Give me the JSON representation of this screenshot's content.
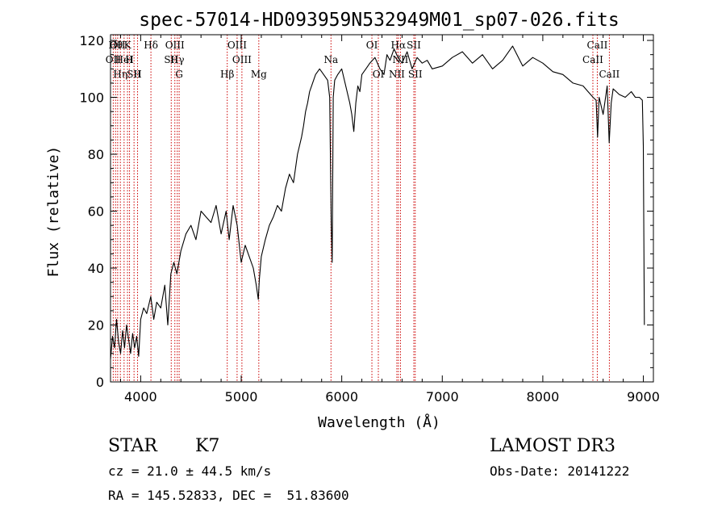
{
  "chart_data": {
    "type": "line",
    "title": "spec-57014-HD093959N532949M01_sp07-026.fits",
    "xlabel": "Wavelength (Å)",
    "ylabel": "Flux (relative)",
    "xlim": [
      3700,
      9100
    ],
    "ylim": [
      0,
      122
    ],
    "x_ticks": [
      4000,
      5000,
      6000,
      7000,
      8000,
      9000
    ],
    "x_tick_labels": [
      "4000",
      "5000",
      "6000",
      "7000",
      "8000",
      "9000"
    ],
    "y_ticks": [
      0,
      20,
      40,
      60,
      80,
      100,
      120
    ],
    "y_tick_labels": [
      "0",
      "20",
      "40",
      "60",
      "80",
      "100",
      "120"
    ],
    "grid": false,
    "legend": "none",
    "line_color": "#000000",
    "marker_color": "#cc0000",
    "series": [
      {
        "x": [
          3700,
          3720,
          3740,
          3760,
          3780,
          3800,
          3820,
          3840,
          3860,
          3880,
          3900,
          3920,
          3940,
          3960,
          3980,
          4000,
          4030,
          4060,
          4100,
          4130,
          4160,
          4200,
          4240,
          4270,
          4300,
          4330,
          4360,
          4400,
          4450,
          4500,
          4550,
          4600,
          4650,
          4700,
          4750,
          4800,
          4850,
          4880,
          4920,
          4960,
          5000,
          5040,
          5080,
          5120,
          5150,
          5170,
          5180,
          5200,
          5240,
          5280,
          5320,
          5360,
          5400,
          5440,
          5480,
          5520,
          5560,
          5600,
          5620,
          5640,
          5660,
          5680,
          5700,
          5740,
          5780,
          5820,
          5860,
          5880,
          5895,
          5905,
          5915,
          5930,
          5960,
          6000,
          6040,
          6080,
          6100,
          6120,
          6140,
          6160,
          6180,
          6200,
          6240,
          6280,
          6330,
          6380,
          6420,
          6450,
          6480,
          6520,
          6560,
          6600,
          6650,
          6700,
          6750,
          6800,
          6850,
          6900,
          7000,
          7100,
          7200,
          7300,
          7400,
          7500,
          7600,
          7700,
          7800,
          7900,
          8000,
          8100,
          8200,
          8300,
          8400,
          8450,
          8500,
          8530,
          8545,
          8560,
          8600,
          8640,
          8660,
          8680,
          8700,
          8760,
          8820,
          8880,
          8920,
          8960,
          8990,
          9000,
          9010
        ],
        "y": [
          8,
          16,
          12,
          22,
          14,
          10,
          18,
          12,
          20,
          15,
          10,
          17,
          12,
          16,
          9,
          22,
          26,
          24,
          30,
          22,
          28,
          26,
          34,
          20,
          38,
          42,
          38,
          46,
          52,
          55,
          50,
          60,
          58,
          56,
          62,
          52,
          60,
          50,
          62,
          55,
          42,
          48,
          44,
          40,
          34,
          29,
          36,
          44,
          50,
          55,
          58,
          62,
          60,
          68,
          73,
          70,
          80,
          86,
          90,
          95,
          98,
          102,
          104,
          108,
          110,
          108,
          106,
          100,
          56,
          42,
          100,
          106,
          108,
          110,
          104,
          98,
          94,
          88,
          98,
          104,
          102,
          108,
          110,
          112,
          114,
          110,
          108,
          115,
          113,
          117,
          114,
          112,
          116,
          110,
          114,
          112,
          113,
          110,
          111,
          114,
          116,
          112,
          115,
          110,
          113,
          118,
          111,
          114,
          112,
          109,
          108,
          105,
          104,
          102,
          100,
          99,
          86,
          100,
          94,
          104,
          84,
          98,
          103,
          101,
          100,
          102,
          100,
          100,
          99,
          83,
          20
        ],
        "name": ""
      }
    ],
    "line_markers": [
      {
        "x": 3727,
        "labels": [
          "OII"
        ],
        "row": 1
      },
      {
        "x": 3750,
        "labels": [
          "Hθ"
        ],
        "row": 0
      },
      {
        "x": 3771,
        "labels": [
          "OII"
        ],
        "row": 0
      },
      {
        "x": 3798,
        "labels": [
          "Hη"
        ],
        "row": 2
      },
      {
        "x": 3835,
        "labels": [
          "HeI"
        ],
        "row": 1
      },
      {
        "x": 3869,
        "labels": [
          "K"
        ],
        "row": 0
      },
      {
        "x": 3889,
        "labels": [
          "H"
        ],
        "row": 1
      },
      {
        "x": 3934,
        "labels": [
          "SII"
        ],
        "row": 2
      },
      {
        "x": 3969,
        "labels": [
          "H"
        ],
        "row": 2
      },
      {
        "x": 4102,
        "labels": [
          "Hδ"
        ],
        "row": 0
      },
      {
        "x": 4304,
        "labels": [
          "SII"
        ],
        "row": 1
      },
      {
        "x": 4340,
        "labels": [
          "OIII"
        ],
        "row": 0
      },
      {
        "x": 4364,
        "labels": [
          "Hγ"
        ],
        "row": 1
      },
      {
        "x": 4383,
        "labels": [
          "G"
        ],
        "row": 2
      },
      {
        "x": 4861,
        "labels": [
          "Hβ"
        ],
        "row": 2
      },
      {
        "x": 4959,
        "labels": [
          "OIII"
        ],
        "row": 0
      },
      {
        "x": 5007,
        "labels": [
          "OIII"
        ],
        "row": 1
      },
      {
        "x": 5175,
        "labels": [
          "Mg"
        ],
        "row": 2
      },
      {
        "x": 5893,
        "labels": [
          "Na"
        ],
        "row": 1
      },
      {
        "x": 6300,
        "labels": [
          "OI"
        ],
        "row": 0
      },
      {
        "x": 6364,
        "labels": [
          "OI"
        ],
        "row": 2
      },
      {
        "x": 6548,
        "labels": [
          "NII"
        ],
        "row": 2
      },
      {
        "x": 6563,
        "labels": [
          "Hα"
        ],
        "row": 0
      },
      {
        "x": 6584,
        "labels": [
          "NII"
        ],
        "row": 1
      },
      {
        "x": 6717,
        "labels": [
          "SII"
        ],
        "row": 0
      },
      {
        "x": 6731,
        "labels": [
          "SII"
        ],
        "row": 2
      },
      {
        "x": 8498,
        "labels": [
          "CaII"
        ],
        "row": 1
      },
      {
        "x": 8542,
        "labels": [
          "CaII"
        ],
        "row": 0
      },
      {
        "x": 8662,
        "labels": [
          "CaII"
        ],
        "row": 2
      }
    ]
  },
  "info": {
    "class_label": "STAR",
    "subclass": "K7",
    "cz": "cz = 21.0 ± 44.5 km/s",
    "radec": "RA = 145.52833, DEC =  51.83600",
    "survey": "LAMOST DR3",
    "obs_date": "Obs-Date: 20141222"
  }
}
